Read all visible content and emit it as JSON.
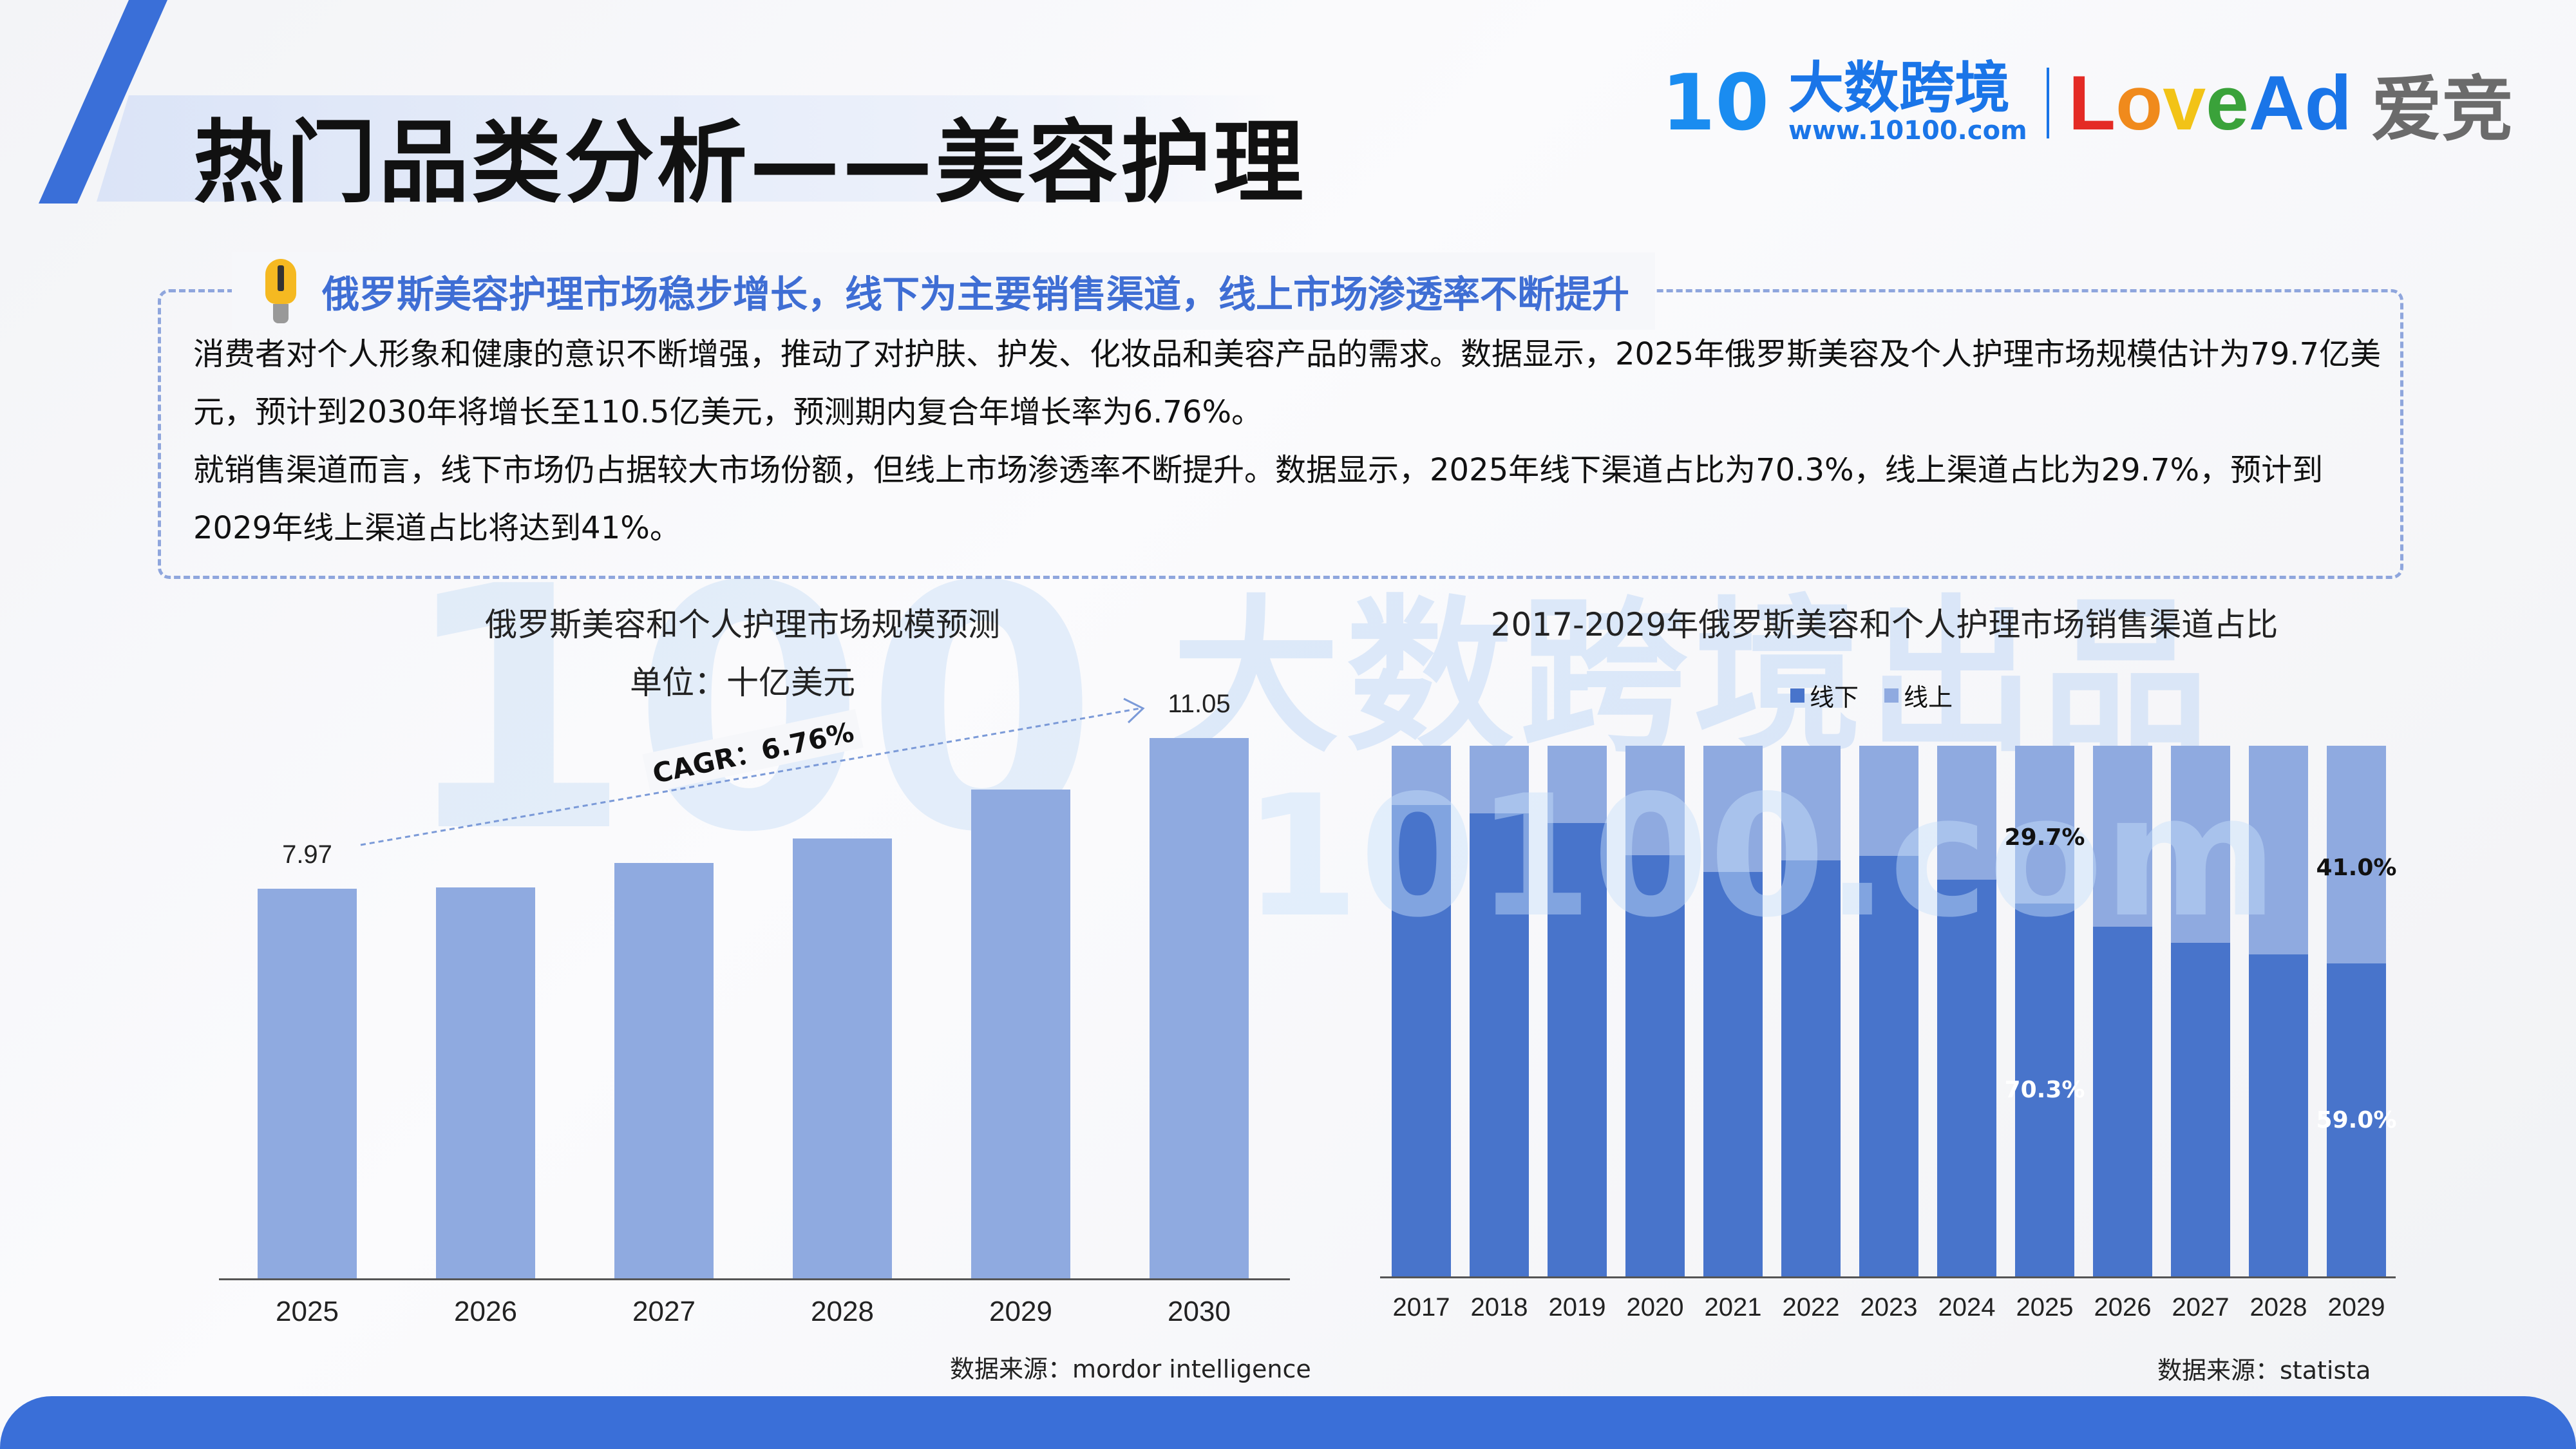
{
  "header": {
    "title": "热门品类分析——美容护理"
  },
  "logo": {
    "mark": "10",
    "brand_cn": "大数跨境",
    "url": "www.10100.com",
    "lovead_letters": [
      {
        "ch": "L",
        "color": "#e42b25"
      },
      {
        "ch": "o",
        "color": "#f08a1c"
      },
      {
        "ch": "v",
        "color": "#f2c317"
      },
      {
        "ch": "e",
        "color": "#3aa23a"
      },
      {
        "ch": "A",
        "color": "#1a75e8"
      },
      {
        "ch": "d",
        "color": "#1a75e8"
      }
    ],
    "aijing": "爱竞"
  },
  "watermark": {
    "line1": "大数跨境出品",
    "line2": "10100.com",
    "mark": "100"
  },
  "callout": {
    "headline": "俄罗斯美容护理市场稳步增长，线下为主要销售渠道，线上市场渗透率不断提升",
    "paragraphs": [
      "消费者对个人形象和健康的意识不断增强，推动了对护肤、护发、化妆品和美容产品的需求。数据显示，2025年俄罗斯美容及个人护理市场规模估计为79.7亿美元，预计到2030年将增长至110.5亿美元，预测期内复合年增长率为6.76%。",
      "就销售渠道而言，线下市场仍占据较大市场份额，但线上市场渗透率不断提升。数据显示，2025年线下渠道占比为70.3%，线上渠道占比为29.7%，预计到2029年线上渠道占比将达到41%。"
    ]
  },
  "chart_data": [
    {
      "type": "bar",
      "title": "俄罗斯美容和个人护理市场规模预测",
      "subtitle": "单位：十亿美元",
      "categories": [
        "2025",
        "2026",
        "2027",
        "2028",
        "2029",
        "2030"
      ],
      "values": [
        7.97,
        8.0,
        8.5,
        9.0,
        10.0,
        11.05
      ],
      "data_labels": {
        "2025": "7.97",
        "2030": "11.05"
      },
      "annotation": "CAGR：6.76%",
      "color": "#8faae0",
      "ylim": [
        0,
        11.05
      ],
      "source": "数据来源：mordor intelligence"
    },
    {
      "type": "bar",
      "stacked": true,
      "title": "2017-2029年俄罗斯美容和个人护理市场销售渠道占比",
      "categories": [
        "2017",
        "2018",
        "2019",
        "2020",
        "2021",
        "2022",
        "2023",
        "2024",
        "2025",
        "2026",
        "2027",
        "2028",
        "2029"
      ],
      "series": [
        {
          "name": "线下",
          "color": "#4874cb",
          "values": [
            88.8,
            87.2,
            85.4,
            79.4,
            76.2,
            78.4,
            79.3,
            74.7,
            70.3,
            65.9,
            62.9,
            60.7,
            59.0
          ]
        },
        {
          "name": "线上",
          "color": "#8faae0",
          "values": [
            11.2,
            12.8,
            14.6,
            20.6,
            23.8,
            21.6,
            20.7,
            25.3,
            29.7,
            34.1,
            37.1,
            39.3,
            41.0
          ]
        }
      ],
      "data_labels": [
        {
          "category": "2025",
          "offline": "70.3%",
          "online": "29.7%"
        },
        {
          "category": "2029",
          "offline": "59.0%",
          "online": "41.0%"
        }
      ],
      "ylim": [
        0,
        100
      ],
      "legend": "top",
      "source": "数据来源：statista"
    }
  ]
}
